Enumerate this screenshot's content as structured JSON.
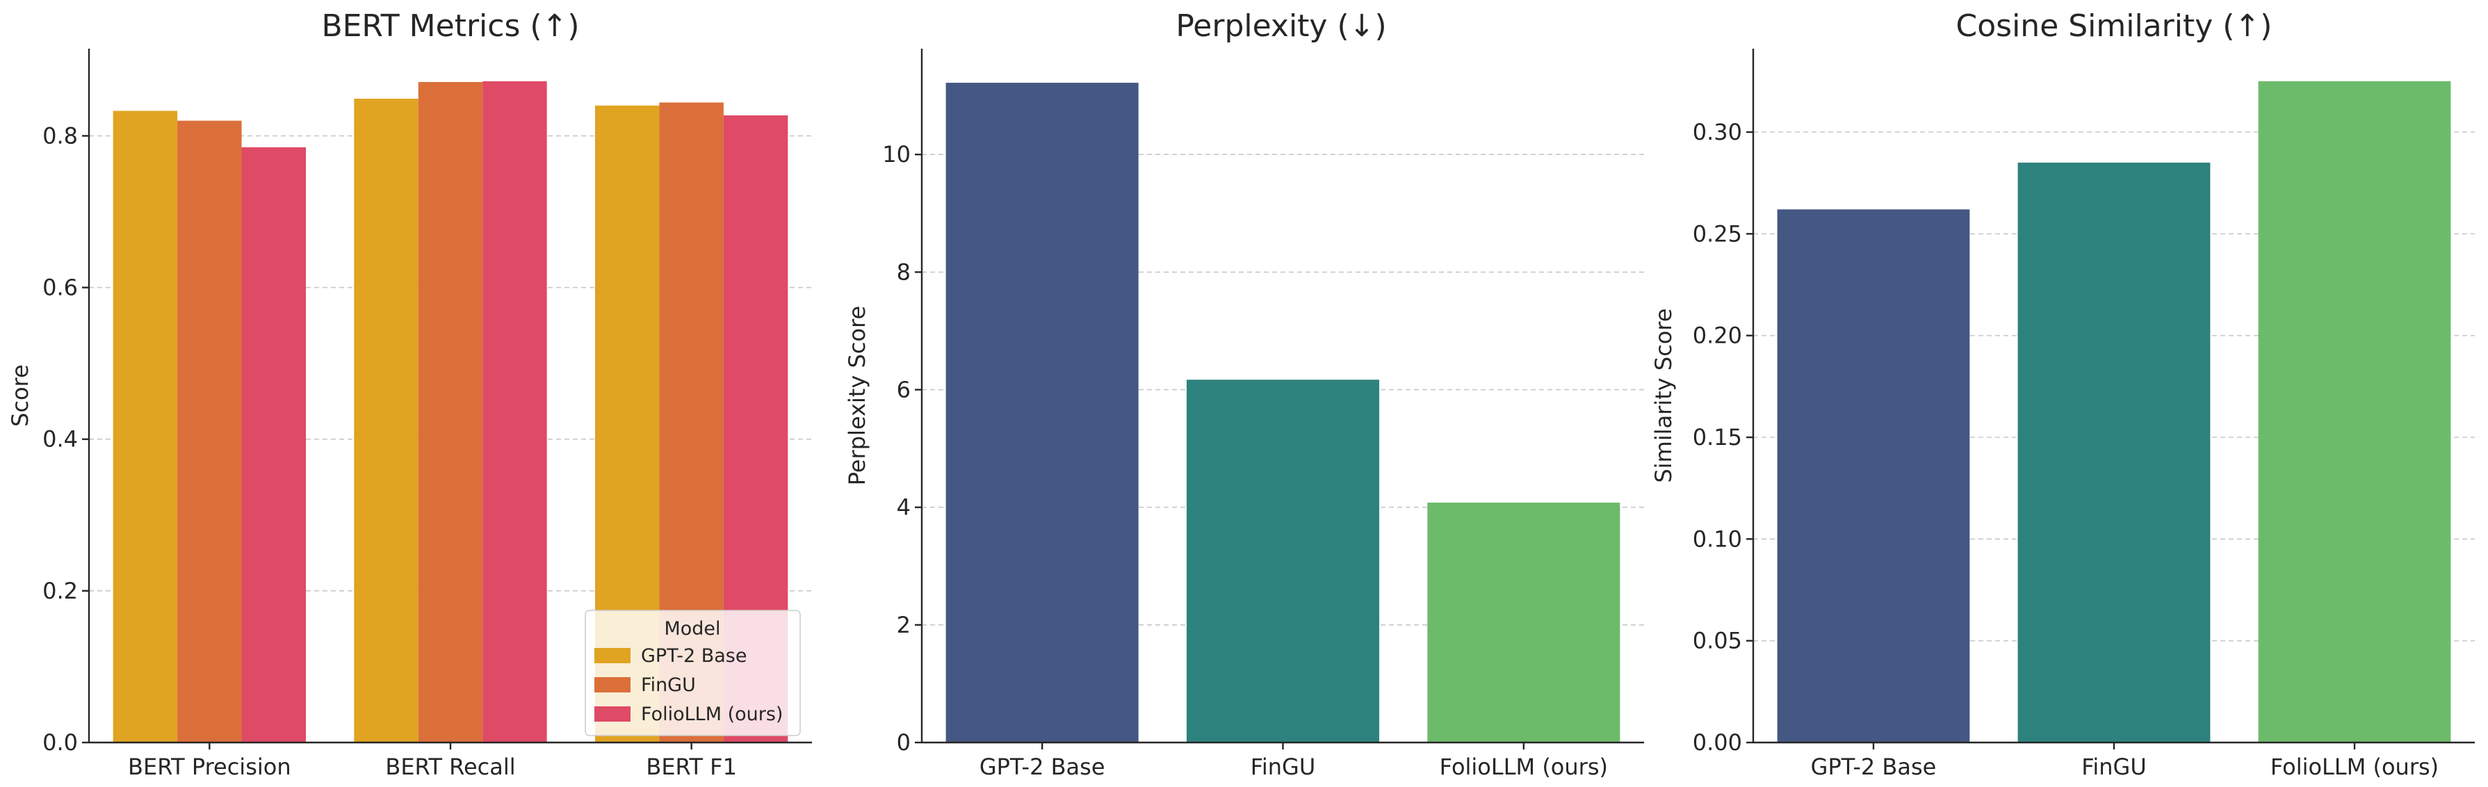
{
  "colors": {
    "gpt2_base": "#e0a322",
    "fingu": "#db6f3a",
    "foliollm": "#df4a66",
    "navy": "#455883",
    "teal": "#2e827d",
    "green": "#6cbb6b"
  },
  "chart_data": [
    {
      "type": "bar",
      "title": "BERT Metrics (↑)",
      "xlabel": "",
      "ylabel": "Score",
      "categories": [
        "BERT Precision",
        "BERT Recall",
        "BERT F1"
      ],
      "series": [
        {
          "name": "GPT-2 Base",
          "values": [
            0.833,
            0.849,
            0.84
          ]
        },
        {
          "name": "FinGU",
          "values": [
            0.82,
            0.871,
            0.844
          ]
        },
        {
          "name": "FolioLLM (ours)",
          "values": [
            0.785,
            0.872,
            0.827
          ]
        }
      ],
      "ylim": [
        0,
        0.915
      ],
      "yticks": [
        "0.0",
        "0.2",
        "0.4",
        "0.6",
        "0.8"
      ],
      "grid": true,
      "legend": {
        "title": "Model",
        "placement": "lower-right"
      }
    },
    {
      "type": "bar",
      "title": "Perplexity (↓)",
      "xlabel": "",
      "ylabel": "Perplexity Score",
      "categories": [
        "GPT-2 Base",
        "FinGU",
        "FolioLLM (ours)"
      ],
      "values": [
        11.22,
        6.17,
        4.08
      ],
      "ylim": [
        0,
        11.8
      ],
      "yticks": [
        "0",
        "2",
        "4",
        "6",
        "8",
        "10"
      ],
      "grid": true
    },
    {
      "type": "bar",
      "title": "Cosine Similarity (↑)",
      "xlabel": "",
      "ylabel": "Similarity Score",
      "categories": [
        "GPT-2 Base",
        "FinGU",
        "FolioLLM (ours)"
      ],
      "values": [
        0.262,
        0.285,
        0.325
      ],
      "ylim": [
        0,
        0.341
      ],
      "yticks": [
        "0.00",
        "0.05",
        "0.10",
        "0.15",
        "0.20",
        "0.25",
        "0.30"
      ],
      "grid": true
    }
  ]
}
